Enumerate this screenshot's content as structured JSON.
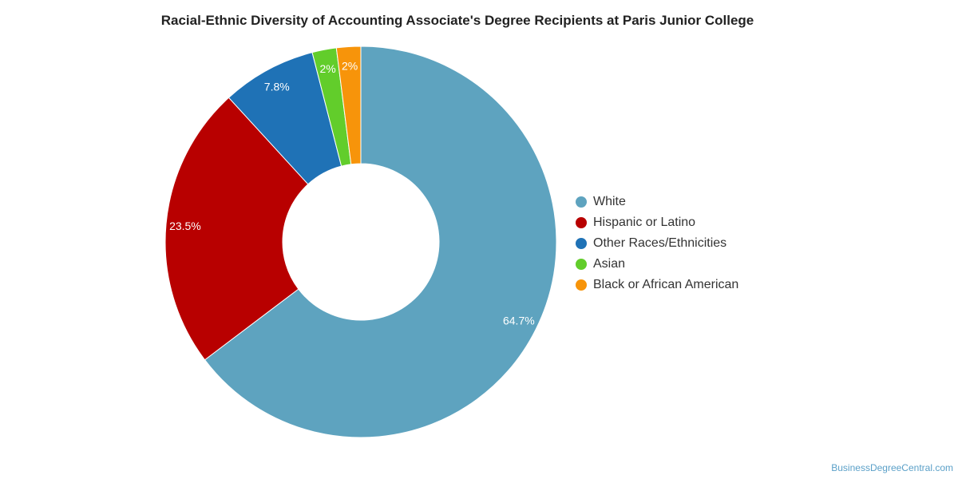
{
  "chart_data": {
    "type": "pie",
    "title": "Racial-Ethnic Diversity of Accounting Associate's Degree Recipients at Paris Junior College",
    "slices": [
      {
        "name": "White",
        "value": 64.7,
        "label": "64.7%",
        "color": "#5ea3bf"
      },
      {
        "name": "Hispanic or Latino",
        "value": 23.5,
        "label": "23.5%",
        "color": "#b80000"
      },
      {
        "name": "Other Races/Ethnicities",
        "value": 7.8,
        "label": "7.8%",
        "color": "#1f72b6"
      },
      {
        "name": "Asian",
        "value": 2.0,
        "label": "2%",
        "color": "#62cd2b"
      },
      {
        "name": "Black or African American",
        "value": 2.0,
        "label": "2%",
        "color": "#f7940a"
      }
    ],
    "legend_position": "right"
  },
  "watermark": "BusinessDegreeCentral.com"
}
